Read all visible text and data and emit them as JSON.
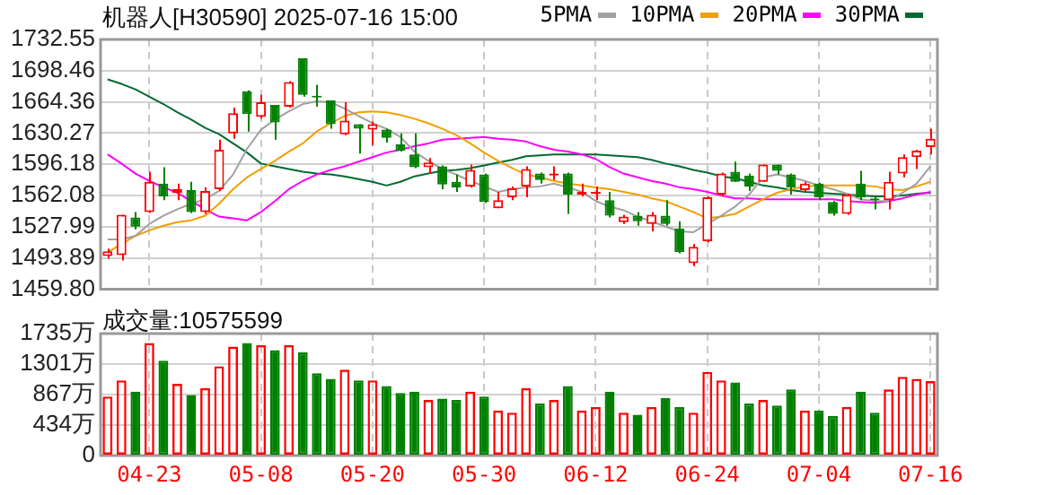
{
  "chart_data": [
    {
      "type": "candlestick",
      "title": "机器人[H30590] 2025-07-16 15:00",
      "categories": [
        null,
        null,
        null,
        null,
        null,
        null,
        null,
        null,
        null,
        null,
        null,
        null,
        null,
        null,
        null,
        null,
        null,
        null,
        null,
        null,
        null,
        null,
        null,
        null,
        null,
        null,
        null,
        null,
        null,
        null,
        null,
        null,
        null,
        null,
        null,
        null,
        null,
        null,
        null,
        null,
        null,
        null,
        null,
        null,
        null,
        null,
        null,
        null,
        null,
        null,
        null,
        null,
        null,
        null,
        null,
        null,
        null,
        null,
        null,
        null
      ],
      "ohlc": [
        [
          1496,
          1504,
          1493,
          1501
        ],
        [
          1497,
          1541,
          1491,
          1541
        ],
        [
          1538,
          1544,
          1525,
          1528
        ],
        [
          1544,
          1588,
          1543,
          1577
        ],
        [
          1575,
          1593,
          1557,
          1561
        ],
        [
          1565,
          1575,
          1557,
          1569
        ],
        [
          1568,
          1577,
          1543,
          1544
        ],
        [
          1544,
          1571,
          1542,
          1567
        ],
        [
          1569,
          1623,
          1567,
          1612
        ],
        [
          1630,
          1658,
          1624,
          1652
        ],
        [
          1676,
          1677,
          1632,
          1651
        ],
        [
          1648,
          1672,
          1646,
          1664
        ],
        [
          1661,
          1661,
          1623,
          1642
        ],
        [
          1659,
          1687,
          1658,
          1686
        ],
        [
          1712,
          1712,
          1670,
          1672
        ],
        [
          1671,
          1683,
          1659,
          1669
        ],
        [
          1666,
          1666,
          1635,
          1640
        ],
        [
          1629,
          1664,
          1628,
          1644
        ],
        [
          1640,
          1640,
          1608,
          1635
        ],
        [
          1634,
          1643,
          1617,
          1640
        ],
        [
          1634,
          1635,
          1620,
          1625
        ],
        [
          1618,
          1630,
          1610,
          1611
        ],
        [
          1607,
          1630,
          1592,
          1593
        ],
        [
          1593,
          1603,
          1586,
          1598
        ],
        [
          1594,
          1595,
          1569,
          1574
        ],
        [
          1577,
          1585,
          1566,
          1571
        ],
        [
          1572,
          1596,
          1571,
          1590
        ],
        [
          1585,
          1586,
          1554,
          1555
        ],
        [
          1548,
          1566,
          1548,
          1557
        ],
        [
          1560,
          1572,
          1557,
          1570
        ],
        [
          1572,
          1594,
          1560,
          1591
        ],
        [
          1586,
          1587,
          1575,
          1579
        ],
        [
          1584,
          1594,
          1579,
          1586
        ],
        [
          1586,
          1587,
          1542,
          1563
        ],
        [
          1563,
          1575,
          1561,
          1566
        ],
        [
          1564,
          1572,
          1557,
          1565
        ],
        [
          1557,
          1566,
          1538,
          1540
        ],
        [
          1533,
          1541,
          1531,
          1539
        ],
        [
          1540,
          1544,
          1529,
          1534
        ],
        [
          1531,
          1544,
          1523,
          1541
        ],
        [
          1540,
          1557,
          1529,
          1531
        ],
        [
          1526,
          1534,
          1499,
          1500
        ],
        [
          1488,
          1509,
          1485,
          1506
        ],
        [
          1512,
          1561,
          1511,
          1560
        ],
        [
          1563,
          1587,
          1561,
          1586
        ],
        [
          1588,
          1599,
          1577,
          1577
        ],
        [
          1584,
          1586,
          1567,
          1572
        ],
        [
          1577,
          1596,
          1577,
          1596
        ],
        [
          1596,
          1596,
          1585,
          1589
        ],
        [
          1585,
          1586,
          1563,
          1571
        ],
        [
          1568,
          1577,
          1566,
          1575
        ],
        [
          1575,
          1576,
          1557,
          1560
        ],
        [
          1555,
          1556,
          1540,
          1542
        ],
        [
          1542,
          1564,
          1541,
          1563
        ],
        [
          1575,
          1589,
          1557,
          1560
        ],
        [
          1559,
          1560,
          1547,
          1557
        ],
        [
          1557,
          1588,
          1547,
          1577
        ],
        [
          1586,
          1607,
          1582,
          1604
        ],
        [
          1604,
          1612,
          1591,
          1611
        ],
        [
          1615,
          1635,
          1607,
          1624
        ]
      ],
      "series": [
        {
          "type": "line",
          "name": "5PMA",
          "color": "#a0a0a0",
          "values": [
            1514,
            1514,
            1518,
            1531,
            1540,
            1547,
            1553,
            1558,
            1567,
            1585,
            1613,
            1634,
            1645,
            1654,
            1662,
            1665,
            1664,
            1657,
            1649,
            1641,
            1635,
            1626,
            1610,
            1600,
            1591,
            1585,
            1578,
            1572,
            1566,
            1569,
            1571,
            1572,
            1575,
            1571,
            1566,
            1556,
            1550,
            1546,
            1539,
            1534,
            1528,
            1523,
            1522,
            1531,
            1540,
            1550,
            1563,
            1582,
            1585,
            1582,
            1578,
            1573,
            1569,
            1564,
            1558,
            1556,
            1556,
            1565,
            1575,
            1594
          ]
        },
        {
          "type": "line",
          "name": "10PMA",
          "color": "#f0a000",
          "values": [
            1500,
            1509,
            1518,
            1524,
            1529,
            1533,
            1535,
            1540,
            1553,
            1569,
            1582,
            1591,
            1600,
            1610,
            1619,
            1632,
            1641,
            1649,
            1653,
            1654,
            1653,
            1650,
            1646,
            1641,
            1635,
            1628,
            1619,
            1609,
            1600,
            1592,
            1585,
            1582,
            1578,
            1575,
            1573,
            1571,
            1569,
            1566,
            1563,
            1559,
            1556,
            1550,
            1544,
            1537,
            1539,
            1542,
            1550,
            1558,
            1565,
            1569,
            1572,
            1573,
            1573,
            1573,
            1573,
            1572,
            1569,
            1568,
            1572,
            1577
          ]
        },
        {
          "type": "line",
          "name": "20PMA",
          "color": "#ff00ff",
          "values": [
            1607,
            1597,
            1586,
            1578,
            1571,
            1565,
            1556,
            1547,
            1539,
            1537,
            1535,
            1544,
            1556,
            1569,
            1578,
            1585,
            1590,
            1594,
            1599,
            1604,
            1609,
            1612,
            1616,
            1619,
            1623,
            1624,
            1625,
            1626,
            1624,
            1623,
            1621,
            1616,
            1612,
            1610,
            1607,
            1602,
            1593,
            1586,
            1582,
            1578,
            1575,
            1571,
            1569,
            1566,
            1562,
            1559,
            1559,
            1558,
            1558,
            1558,
            1558,
            1558,
            1558,
            1556,
            1555,
            1554,
            1556,
            1559,
            1563,
            1566
          ]
        },
        {
          "type": "line",
          "name": "30PMA",
          "color": "#006a30",
          "values": [
            1689,
            1684,
            1678,
            1670,
            1662,
            1653,
            1645,
            1636,
            1629,
            1619,
            1609,
            1597,
            1594,
            1591,
            1588,
            1586,
            1585,
            1583,
            1580,
            1577,
            1573,
            1577,
            1583,
            1586,
            1589,
            1590,
            1592,
            1595,
            1598,
            1601,
            1605,
            1606,
            1607,
            1607,
            1607,
            1607,
            1606,
            1605,
            1604,
            1601,
            1597,
            1594,
            1590,
            1587,
            1583,
            1581,
            1577,
            1573,
            1571,
            1568,
            1566,
            1565,
            1564,
            1563,
            1562,
            1561,
            1561,
            1562,
            1564,
            1565
          ]
        }
      ],
      "ylim": [
        1459.8,
        1732.55
      ],
      "yticks": [
        {
          "value": 1459.8,
          "label": "1459.80"
        },
        1493.89,
        1527.99,
        1562.08,
        1596.18,
        1630.27,
        1664.36,
        1698.46,
        1732.55
      ],
      "tick_labels": "y",
      "grid": true,
      "legend": "top right"
    },
    {
      "type": "bar",
      "title": "成交量:10575599",
      "categories": [
        null,
        null,
        null,
        "04-23",
        null,
        null,
        null,
        null,
        null,
        null,
        null,
        "05-08",
        null,
        null,
        null,
        null,
        null,
        null,
        null,
        "05-20",
        null,
        null,
        null,
        null,
        null,
        null,
        null,
        "05-30",
        null,
        null,
        null,
        null,
        null,
        null,
        null,
        "06-12",
        null,
        null,
        null,
        null,
        null,
        null,
        null,
        "06-24",
        null,
        null,
        null,
        null,
        null,
        null,
        null,
        "07-04",
        null,
        null,
        null,
        null,
        null,
        null,
        null,
        "07-16"
      ],
      "values": [
        840,
        1070,
        910,
        1600,
        1350,
        1020,
        860,
        960,
        1270,
        1550,
        1600,
        1570,
        1500,
        1570,
        1470,
        1170,
        1090,
        1220,
        1070,
        1070,
        990,
        890,
        910,
        790,
        810,
        790,
        910,
        840,
        640,
        610,
        960,
        740,
        790,
        990,
        640,
        690,
        910,
        610,
        580,
        690,
        820,
        690,
        610,
        1190,
        1070,
        1040,
        740,
        790,
        710,
        940,
        640,
        640,
        560,
        690,
        910,
        610,
        940,
        1120,
        1090,
        1057.6
      ],
      "colors": [
        "#ff0000",
        "#ff0000",
        "#008000",
        "#ff0000",
        "#008000",
        "#ff0000",
        "#008000",
        "#ff0000",
        "#ff0000",
        "#ff0000",
        "#008000",
        "#ff0000",
        "#008000",
        "#ff0000",
        "#008000",
        "#008000",
        "#008000",
        "#ff0000",
        "#008000",
        "#ff0000",
        "#008000",
        "#008000",
        "#008000",
        "#ff0000",
        "#008000",
        "#008000",
        "#ff0000",
        "#008000",
        "#ff0000",
        "#ff0000",
        "#ff0000",
        "#008000",
        "#ff0000",
        "#008000",
        "#ff0000",
        "#ff0000",
        "#008000",
        "#ff0000",
        "#008000",
        "#ff0000",
        "#008000",
        "#008000",
        "#ff0000",
        "#ff0000",
        "#ff0000",
        "#008000",
        "#008000",
        "#ff0000",
        "#008000",
        "#008000",
        "#ff0000",
        "#008000",
        "#008000",
        "#ff0000",
        "#008000",
        "#008000",
        "#ff0000",
        "#ff0000",
        "#ff0000",
        "#ff0000"
      ],
      "ylim": [
        0,
        1735
      ],
      "yticks": [
        0,
        {
          "value": 434,
          "label": "434万"
        },
        {
          "value": 867,
          "label": "867万"
        },
        {
          "value": 1301,
          "label": "1301万"
        },
        {
          "value": 1735,
          "label": "1735万"
        }
      ],
      "grid": true
    }
  ]
}
